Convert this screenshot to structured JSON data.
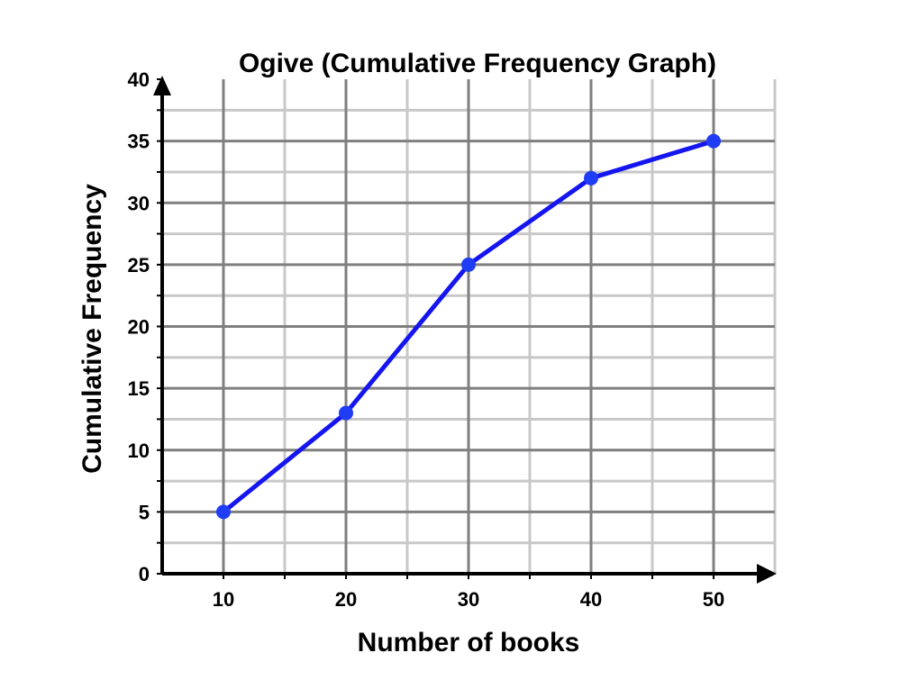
{
  "chart_data": {
    "type": "line",
    "title": "Ogive (Cumulative Frequency Graph)",
    "xlabel": "Number of books",
    "ylabel": "Cumulative Frequency",
    "x": [
      10,
      20,
      30,
      40,
      50
    ],
    "y": [
      5,
      13,
      25,
      32,
      35
    ],
    "xlim": [
      5,
      55
    ],
    "ylim": [
      0,
      40
    ],
    "x_ticks": [
      "10",
      "20",
      "30",
      "40",
      "50"
    ],
    "y_ticks": [
      "0",
      "5",
      "10",
      "15",
      "20",
      "25",
      "30",
      "35",
      "40"
    ],
    "grid": true,
    "markers": true,
    "colors": {
      "line": "#1515f0",
      "marker": "#1f3df5",
      "major_grid": "#7f7f7f",
      "minor_grid": "#c8c8c8",
      "axis": "#000000"
    }
  }
}
